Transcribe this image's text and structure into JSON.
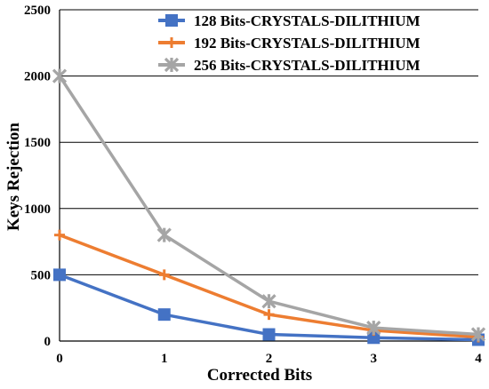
{
  "chart_data": {
    "type": "line",
    "title": "",
    "xlabel": "Corrected Bits",
    "ylabel": "Keys Rejection",
    "x": [
      0,
      1,
      2,
      3,
      4
    ],
    "xlim": [
      0,
      4
    ],
    "ylim": [
      0,
      2500
    ],
    "yticks": [
      0,
      500,
      1000,
      1500,
      2000,
      2500
    ],
    "grid": "horizontal",
    "legend_position": "top-right",
    "series": [
      {
        "name": "128 Bits-CRYSTALS-DILITHIUM",
        "color": "#4472C4",
        "marker": "square",
        "values": [
          500,
          200,
          50,
          25,
          10
        ]
      },
      {
        "name": "192 Bits-CRYSTALS-DILITHIUM",
        "color": "#ED7D31",
        "marker": "plus",
        "values": [
          800,
          500,
          200,
          80,
          30
        ]
      },
      {
        "name": "256 Bits-CRYSTALS-DILITHIUM",
        "color": "#A5A5A5",
        "marker": "star",
        "values": [
          2000,
          800,
          300,
          100,
          50
        ]
      }
    ]
  }
}
